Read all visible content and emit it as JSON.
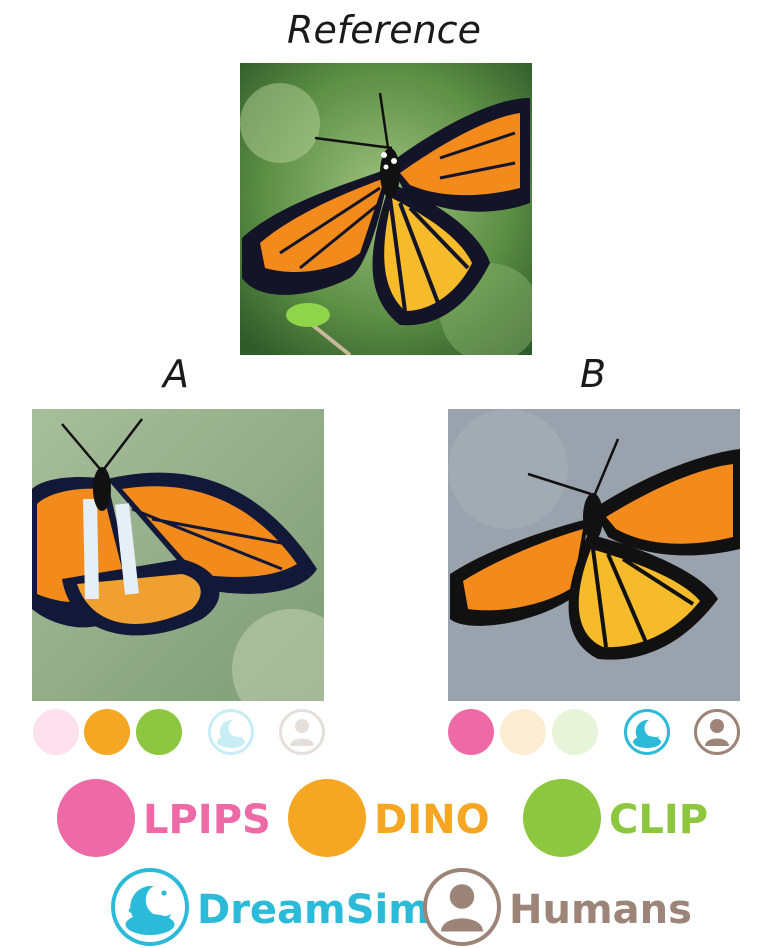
{
  "titles": {
    "reference": "Reference",
    "a": "A",
    "b": "B"
  },
  "colors": {
    "lpips": "#ee6aa7",
    "dino": "#f5a623",
    "clip": "#8dc63f",
    "dreamsim": "#2bbbd8",
    "humans": "#9c8478"
  },
  "votes": {
    "a": {
      "lpips": false,
      "dino": true,
      "clip": true,
      "dreamsim": false,
      "humans": false
    },
    "b": {
      "lpips": true,
      "dino": false,
      "clip": false,
      "dreamsim": true,
      "humans": true
    }
  },
  "legend": {
    "lpips": "LPIPS",
    "dino": "DINO",
    "clip": "CLIP",
    "dreamsim": "DreamSim",
    "humans": "Humans"
  },
  "icons": {
    "dreamsim": "moon-cloud-icon",
    "humans": "person-icon"
  }
}
